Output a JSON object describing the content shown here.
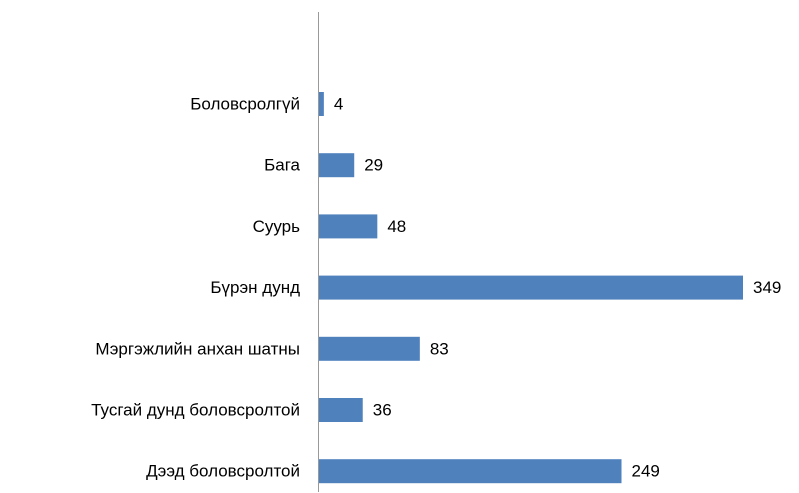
{
  "chart_data": {
    "type": "bar",
    "orientation": "horizontal",
    "categories": [
      "Боловсролгүй",
      "Бага",
      "Суурь",
      "Бүрэн дунд",
      "Мэргэжлийн анхан шатны",
      "Тусгай дунд боловсролтой",
      "Дээд боловсролтой"
    ],
    "values": [
      4,
      29,
      48,
      349,
      83,
      36,
      249
    ],
    "color": "#4f81bd"
  }
}
